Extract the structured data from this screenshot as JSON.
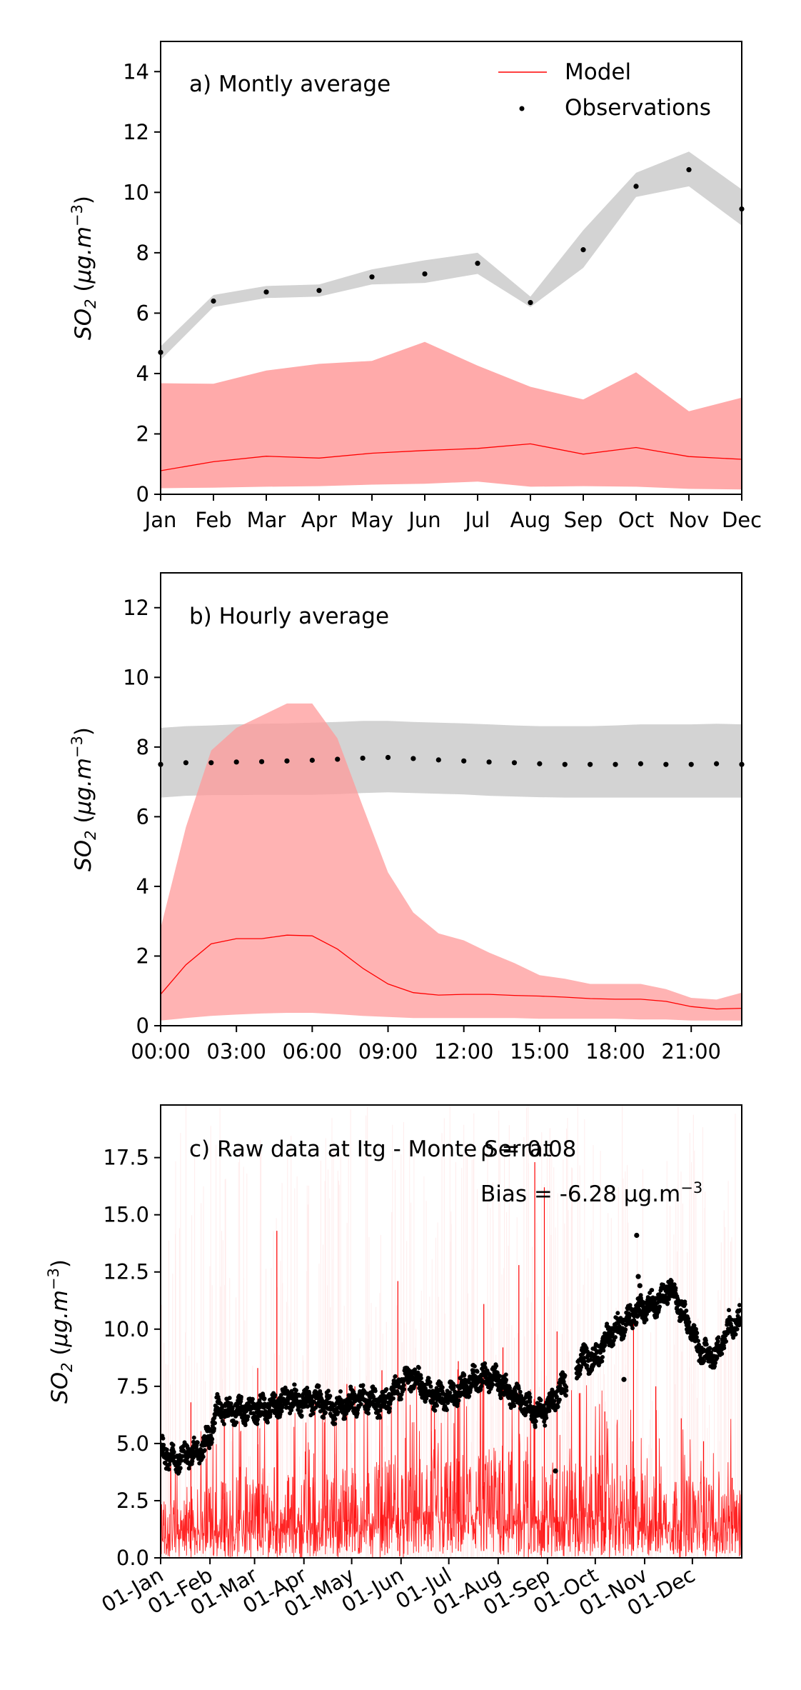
{
  "chart_data": [
    {
      "panel": "a",
      "type": "line",
      "title": "a) Montly average",
      "xlabel": "",
      "ylabel": "SO2 (µg.m-3)",
      "ylabel_parts": {
        "base": "SO",
        "sub": "2",
        "unit_open": " (",
        "unit": "μg.m",
        "exp": "−3",
        "unit_close": ")"
      },
      "ylim": [
        0,
        15
      ],
      "yticks": [
        "0",
        "2",
        "4",
        "6",
        "8",
        "10",
        "12",
        "14"
      ],
      "ytick_values": [
        0,
        2,
        4,
        6,
        8,
        10,
        12,
        14
      ],
      "categories": [
        "Jan",
        "Feb",
        "Mar",
        "Apr",
        "May",
        "Jun",
        "Jul",
        "Aug",
        "Sep",
        "Oct",
        "Nov",
        "Dec"
      ],
      "legend": {
        "placement": "top-right",
        "entries": [
          "Model",
          "Observations"
        ]
      },
      "series": [
        {
          "name": "Model",
          "kind": "line",
          "color": "#ff0000",
          "values": [
            0.78,
            1.08,
            1.26,
            1.2,
            1.36,
            1.45,
            1.52,
            1.67,
            1.33,
            1.55,
            1.25,
            1.16
          ],
          "band_low": [
            0.2,
            0.22,
            0.25,
            0.27,
            0.32,
            0.35,
            0.42,
            0.25,
            0.27,
            0.25,
            0.18,
            0.16
          ],
          "band_high": [
            3.68,
            3.66,
            4.1,
            4.32,
            4.42,
            5.05,
            4.26,
            3.56,
            3.14,
            4.04,
            2.75,
            3.2
          ]
        },
        {
          "name": "Observations",
          "kind": "points",
          "color": "#000000",
          "values": [
            4.7,
            6.4,
            6.7,
            6.75,
            7.2,
            7.3,
            7.65,
            6.35,
            8.1,
            10.2,
            10.75,
            9.45
          ],
          "band_low": [
            4.45,
            6.2,
            6.5,
            6.55,
            6.95,
            7.0,
            7.3,
            6.2,
            7.5,
            9.85,
            10.2,
            8.9
          ],
          "band_high": [
            4.9,
            6.6,
            6.9,
            6.95,
            7.45,
            7.75,
            8.0,
            6.55,
            8.75,
            10.65,
            11.35,
            10.1
          ]
        }
      ]
    },
    {
      "panel": "b",
      "type": "line",
      "title": "b) Hourly average",
      "xlabel": "",
      "ylabel": "SO2 (µg.m-3)",
      "ylabel_parts": {
        "base": "SO",
        "sub": "2",
        "unit_open": " (",
        "unit": "μg.m",
        "exp": "−3",
        "unit_close": ")"
      },
      "ylim": [
        0,
        13
      ],
      "xlim": [
        0,
        23
      ],
      "yticks": [
        "0",
        "2",
        "4",
        "6",
        "8",
        "10",
        "12"
      ],
      "ytick_values": [
        0,
        2,
        4,
        6,
        8,
        10,
        12
      ],
      "xticks": [
        "00:00",
        "03:00",
        "06:00",
        "09:00",
        "12:00",
        "15:00",
        "18:00",
        "21:00"
      ],
      "xtick_values": [
        0,
        3,
        6,
        9,
        12,
        15,
        18,
        21
      ],
      "x": [
        0,
        1,
        2,
        3,
        4,
        5,
        6,
        7,
        8,
        9,
        10,
        11,
        12,
        13,
        14,
        15,
        16,
        17,
        18,
        19,
        20,
        21,
        22,
        23
      ],
      "series": [
        {
          "name": "Model",
          "kind": "line",
          "color": "#ff0000",
          "values": [
            0.9,
            1.75,
            2.35,
            2.5,
            2.5,
            2.6,
            2.58,
            2.2,
            1.65,
            1.2,
            0.95,
            0.88,
            0.9,
            0.9,
            0.87,
            0.85,
            0.82,
            0.78,
            0.76,
            0.76,
            0.7,
            0.55,
            0.48,
            0.5
          ],
          "band_low": [
            0.15,
            0.22,
            0.28,
            0.32,
            0.35,
            0.37,
            0.37,
            0.33,
            0.28,
            0.25,
            0.22,
            0.22,
            0.22,
            0.22,
            0.22,
            0.2,
            0.2,
            0.2,
            0.2,
            0.18,
            0.18,
            0.15,
            0.15,
            0.15
          ],
          "band_high": [
            2.8,
            5.7,
            7.9,
            8.55,
            8.9,
            9.25,
            9.25,
            8.25,
            6.3,
            4.4,
            3.25,
            2.65,
            2.45,
            2.1,
            1.8,
            1.45,
            1.35,
            1.2,
            1.2,
            1.2,
            1.05,
            0.8,
            0.75,
            0.95
          ]
        },
        {
          "name": "Observations",
          "kind": "points",
          "color": "#000000",
          "values": [
            7.5,
            7.55,
            7.55,
            7.57,
            7.58,
            7.6,
            7.62,
            7.65,
            7.68,
            7.7,
            7.67,
            7.63,
            7.6,
            7.57,
            7.55,
            7.52,
            7.5,
            7.5,
            7.5,
            7.52,
            7.5,
            7.5,
            7.52,
            7.5
          ],
          "band_low": [
            6.55,
            6.6,
            6.62,
            6.62,
            6.63,
            6.63,
            6.63,
            6.65,
            6.68,
            6.7,
            6.68,
            6.66,
            6.64,
            6.6,
            6.58,
            6.56,
            6.55,
            6.55,
            6.55,
            6.55,
            6.55,
            6.55,
            6.55,
            6.55
          ],
          "band_high": [
            8.55,
            8.6,
            8.62,
            8.65,
            8.67,
            8.68,
            8.7,
            8.72,
            8.75,
            8.75,
            8.72,
            8.7,
            8.68,
            8.65,
            8.62,
            8.6,
            8.6,
            8.6,
            8.62,
            8.65,
            8.65,
            8.65,
            8.67,
            8.65
          ]
        }
      ]
    },
    {
      "panel": "c",
      "type": "line",
      "title": "c) Raw data at Itg - Monte Serrat",
      "annotations": {
        "rho": "ρ = 0.08",
        "bias": "Bias = -6.28 μg.m",
        "bias_exp": "−3"
      },
      "xlabel": "",
      "ylabel": "SO2 (µg.m-3)",
      "ylabel_parts": {
        "base": "SO",
        "sub": "2",
        "unit_open": " (",
        "unit": "μg.m",
        "exp": "−3",
        "unit_close": ")"
      },
      "ylim": [
        0,
        19.8
      ],
      "xlim": [
        1,
        366
      ],
      "yticks": [
        "0.0",
        "2.5",
        "5.0",
        "7.5",
        "10.0",
        "12.5",
        "15.0",
        "17.5"
      ],
      "ytick_values": [
        0,
        2.5,
        5,
        7.5,
        10,
        12.5,
        15,
        17.5
      ],
      "xticks": [
        "01-Jan",
        "01-Feb",
        "01-Mar",
        "01-Apr",
        "01-May",
        "01-Jun",
        "01-Jul",
        "01-Aug",
        "01-Sep",
        "01-Oct",
        "01-Nov",
        "01-Dec"
      ],
      "xtick_values": [
        1,
        32,
        60,
        91,
        121,
        152,
        182,
        213,
        244,
        274,
        305,
        335
      ],
      "series": [
        {
          "name": "Model",
          "kind": "line",
          "color": "#ff0000",
          "profile_x": [
            1,
            32,
            60,
            91,
            121,
            152,
            182,
            213,
            244,
            274,
            305,
            335,
            366
          ],
          "typical_values": [
            0.8,
            1.1,
            1.25,
            1.2,
            1.35,
            1.45,
            1.5,
            1.65,
            1.3,
            1.55,
            1.25,
            1.15,
            1.15
          ],
          "spikes": [
            {
              "x": 20,
              "y": 6.8
            },
            {
              "x": 41,
              "y": 6.2
            },
            {
              "x": 62,
              "y": 8.3
            },
            {
              "x": 74,
              "y": 14.3
            },
            {
              "x": 98,
              "y": 7.2
            },
            {
              "x": 118,
              "y": 7.6
            },
            {
              "x": 123,
              "y": 7.5
            },
            {
              "x": 140,
              "y": 8.2
            },
            {
              "x": 150,
              "y": 12.1
            },
            {
              "x": 171,
              "y": 7.1
            },
            {
              "x": 188,
              "y": 8.6
            },
            {
              "x": 204,
              "y": 11.1
            },
            {
              "x": 216,
              "y": 9.2
            },
            {
              "x": 226,
              "y": 12.8
            },
            {
              "x": 236,
              "y": 17.3
            },
            {
              "x": 242,
              "y": 16.2
            },
            {
              "x": 250,
              "y": 9.9
            },
            {
              "x": 264,
              "y": 7.2
            },
            {
              "x": 280,
              "y": 6.4
            },
            {
              "x": 298,
              "y": 10.9
            },
            {
              "x": 312,
              "y": 7.5
            },
            {
              "x": 328,
              "y": 6.1
            },
            {
              "x": 342,
              "y": 5.1
            },
            {
              "x": 360,
              "y": 3.5
            }
          ]
        },
        {
          "name": "Observations",
          "kind": "points",
          "color": "#000000",
          "profile_x": [
            1,
            10,
            20,
            26,
            32,
            36,
            45,
            60,
            72,
            82,
            91,
            100,
            110,
            121,
            130,
            140,
            152,
            160,
            170,
            182,
            190,
            200,
            213,
            222,
            235,
            240,
            246,
            252,
            265,
            274,
            284,
            294,
            300,
            305,
            316,
            320,
            330,
            340,
            350,
            358,
            366
          ],
          "values": [
            4.7,
            4.3,
            4.6,
            4.7,
            5.3,
            6.5,
            6.4,
            6.5,
            6.6,
            7.0,
            6.8,
            6.9,
            6.5,
            6.8,
            7.0,
            6.7,
            7.6,
            8.0,
            7.1,
            7.0,
            7.4,
            7.9,
            7.8,
            7.1,
            6.4,
            6.3,
            6.7,
            7.3,
            8.7,
            8.7,
            9.9,
            10.3,
            10.8,
            10.9,
            11.3,
            11.9,
            10.6,
            9.0,
            8.8,
            10.2,
            10.4
          ],
          "outliers": [
            {
              "x": 249,
              "y": 3.8
            },
            {
              "x": 300,
              "y": 14.1
            },
            {
              "x": 301,
              "y": 12.3
            },
            {
              "x": 302,
              "y": 11.9
            },
            {
              "x": 292,
              "y": 7.8
            },
            {
              "x": 321,
              "y": 12.0
            }
          ]
        }
      ]
    }
  ]
}
